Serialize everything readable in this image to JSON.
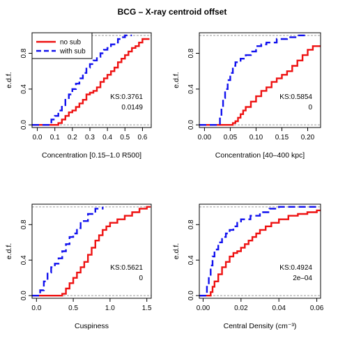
{
  "title": "BCG – X-ray centroid offset",
  "colors": {
    "nosub": "#ee1111",
    "withsub": "#1111ee",
    "refline": "#9a9a9a"
  },
  "legend": {
    "placement": "top-left of first panel",
    "items": [
      {
        "label": "no sub",
        "color": "#ee1111",
        "style": "solid"
      },
      {
        "label": "with sub",
        "color": "#1111ee",
        "style": "dashed"
      }
    ]
  },
  "chart_data": [
    {
      "type": "line",
      "step": true,
      "xlabel": "Concentration [0.15–1.0 R500]",
      "ylabel": "e.d.f.",
      "xlim": [
        -0.03,
        0.65
      ],
      "ylim": [
        -0.03,
        1.03
      ],
      "xticks": [
        "0.0",
        "0.1",
        "0.2",
        "0.3",
        "0.4",
        "0.5",
        "0.6"
      ],
      "yticks": [
        "0.0",
        "0.4",
        "0.8"
      ],
      "annotation": [
        "KS:0.3761",
        "0.0149"
      ],
      "series": [
        {
          "name": "no sub",
          "color": "#ee1111",
          "style": "solid",
          "x": [
            0.0,
            0.12,
            0.14,
            0.16,
            0.18,
            0.2,
            0.22,
            0.24,
            0.26,
            0.28,
            0.3,
            0.32,
            0.34,
            0.36,
            0.38,
            0.4,
            0.42,
            0.44,
            0.46,
            0.48,
            0.5,
            0.52,
            0.54,
            0.56,
            0.58,
            0.6,
            0.64
          ],
          "y": [
            0.0,
            0.02,
            0.06,
            0.1,
            0.14,
            0.16,
            0.2,
            0.24,
            0.28,
            0.34,
            0.36,
            0.38,
            0.42,
            0.48,
            0.52,
            0.56,
            0.6,
            0.64,
            0.7,
            0.74,
            0.78,
            0.82,
            0.86,
            0.88,
            0.92,
            0.96,
            0.96
          ]
        },
        {
          "name": "with sub",
          "color": "#1111ee",
          "style": "dashed",
          "x": [
            0.0,
            0.08,
            0.1,
            0.12,
            0.14,
            0.16,
            0.18,
            0.2,
            0.22,
            0.24,
            0.26,
            0.28,
            0.3,
            0.32,
            0.34,
            0.36,
            0.38,
            0.4,
            0.42,
            0.44,
            0.46,
            0.48,
            0.5,
            0.52,
            0.54
          ],
          "y": [
            0.0,
            0.06,
            0.1,
            0.16,
            0.22,
            0.28,
            0.34,
            0.4,
            0.46,
            0.52,
            0.58,
            0.64,
            0.68,
            0.72,
            0.76,
            0.8,
            0.84,
            0.86,
            0.9,
            0.92,
            0.96,
            0.98,
            1.0,
            1.0,
            1.0
          ]
        }
      ]
    },
    {
      "type": "line",
      "step": true,
      "xlabel": "Concentration [40–400 kpc]",
      "ylabel": "e.d.f.",
      "xlim": [
        -0.01,
        0.225
      ],
      "ylim": [
        -0.03,
        1.03
      ],
      "xticks": [
        "0.00",
        "0.05",
        "0.10",
        "0.15",
        "0.20"
      ],
      "yticks": [
        "0.0",
        "0.4",
        "0.8"
      ],
      "annotation": [
        "KS:0.5854",
        "0"
      ],
      "series": [
        {
          "name": "no sub",
          "color": "#ee1111",
          "style": "solid",
          "x": [
            0.0,
            0.055,
            0.06,
            0.065,
            0.07,
            0.075,
            0.08,
            0.09,
            0.1,
            0.11,
            0.12,
            0.13,
            0.14,
            0.15,
            0.16,
            0.17,
            0.18,
            0.19,
            0.2,
            0.21,
            0.225
          ],
          "y": [
            0.0,
            0.02,
            0.04,
            0.08,
            0.12,
            0.16,
            0.2,
            0.26,
            0.32,
            0.38,
            0.42,
            0.48,
            0.52,
            0.56,
            0.6,
            0.66,
            0.72,
            0.78,
            0.84,
            0.88,
            0.88
          ]
        },
        {
          "name": "with sub",
          "color": "#1111ee",
          "style": "dashed",
          "x": [
            0.0,
            0.03,
            0.033,
            0.036,
            0.04,
            0.045,
            0.05,
            0.055,
            0.06,
            0.07,
            0.08,
            0.09,
            0.1,
            0.11,
            0.12,
            0.14,
            0.16,
            0.18,
            0.2
          ],
          "y": [
            0.0,
            0.1,
            0.2,
            0.3,
            0.4,
            0.5,
            0.58,
            0.66,
            0.7,
            0.74,
            0.78,
            0.82,
            0.88,
            0.9,
            0.92,
            0.96,
            0.98,
            1.0,
            1.0
          ]
        }
      ]
    },
    {
      "type": "line",
      "step": true,
      "xlabel": "Cuspiness",
      "ylabel": "e.d.f.",
      "xlim": [
        -0.06,
        1.56
      ],
      "ylim": [
        -0.03,
        1.03
      ],
      "xticks": [
        "0.0",
        "0.5",
        "1.0",
        "1.5"
      ],
      "yticks": [
        "0.0",
        "0.4",
        "0.8"
      ],
      "annotation": [
        "KS:0.5621",
        "0"
      ],
      "series": [
        {
          "name": "no sub",
          "color": "#ee1111",
          "style": "solid",
          "x": [
            0.0,
            0.35,
            0.4,
            0.45,
            0.5,
            0.55,
            0.6,
            0.65,
            0.7,
            0.75,
            0.8,
            0.85,
            0.9,
            0.95,
            1.0,
            1.1,
            1.2,
            1.3,
            1.4,
            1.5,
            1.55
          ],
          "y": [
            0.0,
            0.02,
            0.08,
            0.14,
            0.2,
            0.26,
            0.32,
            0.38,
            0.46,
            0.54,
            0.62,
            0.68,
            0.74,
            0.78,
            0.82,
            0.86,
            0.9,
            0.94,
            0.98,
            1.0,
            1.0
          ]
        },
        {
          "name": "with sub",
          "color": "#1111ee",
          "style": "dashed",
          "x": [
            0.0,
            0.05,
            0.1,
            0.15,
            0.2,
            0.25,
            0.3,
            0.35,
            0.4,
            0.45,
            0.5,
            0.55,
            0.6,
            0.7,
            0.8,
            0.9
          ],
          "y": [
            0.0,
            0.06,
            0.16,
            0.26,
            0.32,
            0.36,
            0.42,
            0.5,
            0.58,
            0.66,
            0.7,
            0.76,
            0.84,
            0.92,
            0.98,
            1.0
          ]
        }
      ]
    },
    {
      "type": "line",
      "step": true,
      "xlabel": "Central Density (cm⁻³)",
      "ylabel": "e.d.f.",
      "xlim": [
        -0.002,
        0.062
      ],
      "ylim": [
        -0.03,
        1.03
      ],
      "xticks": [
        "0.00",
        "0.02",
        "0.04",
        "0.06"
      ],
      "yticks": [
        "0.0",
        "0.4",
        "0.8"
      ],
      "annotation": [
        "KS:0.4924",
        "2e–04"
      ],
      "series": [
        {
          "name": "no sub",
          "color": "#ee1111",
          "style": "solid",
          "x": [
            0.0,
            0.004,
            0.005,
            0.006,
            0.008,
            0.01,
            0.012,
            0.014,
            0.016,
            0.018,
            0.02,
            0.022,
            0.024,
            0.026,
            0.028,
            0.03,
            0.033,
            0.036,
            0.04,
            0.045,
            0.05,
            0.055,
            0.06,
            0.062
          ],
          "y": [
            0.0,
            0.04,
            0.1,
            0.16,
            0.24,
            0.32,
            0.38,
            0.44,
            0.48,
            0.5,
            0.54,
            0.58,
            0.62,
            0.66,
            0.7,
            0.74,
            0.78,
            0.82,
            0.86,
            0.9,
            0.92,
            0.94,
            0.96,
            0.96
          ]
        },
        {
          "name": "with sub",
          "color": "#1111ee",
          "style": "dashed",
          "x": [
            0.0,
            0.002,
            0.003,
            0.004,
            0.005,
            0.006,
            0.008,
            0.01,
            0.012,
            0.014,
            0.016,
            0.018,
            0.02,
            0.025,
            0.03,
            0.035,
            0.04,
            0.05,
            0.06
          ],
          "y": [
            0.0,
            0.1,
            0.22,
            0.34,
            0.44,
            0.52,
            0.6,
            0.66,
            0.7,
            0.74,
            0.78,
            0.82,
            0.86,
            0.9,
            0.94,
            0.98,
            1.0,
            1.0,
            1.0
          ]
        }
      ]
    }
  ]
}
